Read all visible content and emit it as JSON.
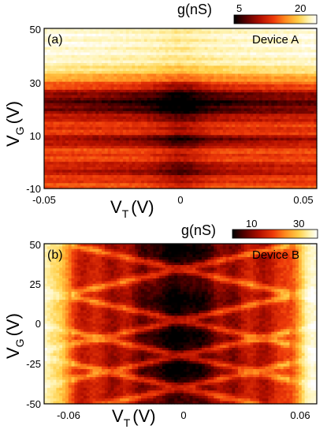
{
  "colors": {
    "colormap": [
      "#000000",
      "#5a0000",
      "#b41000",
      "#ee3a0a",
      "#ff8a1e",
      "#ffcf48",
      "#fff3b0",
      "#ffffff"
    ]
  },
  "chart_data": [
    {
      "type": "heatmap",
      "panel_label": "(a)",
      "device_label": "Device A",
      "xlabel": "V",
      "xlabel_sub": "T",
      "xlabel_unit": "(V)",
      "ylabel": "V",
      "ylabel_sub": "G",
      "ylabel_unit": "(V)",
      "x_ticks": [
        "-0.05",
        "0",
        "0.05"
      ],
      "y_ticks": [
        "50",
        "30",
        "10",
        "-10"
      ],
      "xlim": [
        -0.05,
        0.05
      ],
      "ylim": [
        -10,
        50
      ],
      "colorbar": {
        "label": "g(nS)",
        "ticks": [
          "5",
          "20"
        ],
        "range": [
          5,
          20
        ]
      },
      "features": {
        "dark_bands_vg": [
          22,
          8,
          -3
        ],
        "bright_region_vg": [
          36,
          50
        ],
        "dark_center_vt": 0
      }
    },
    {
      "type": "heatmap",
      "panel_label": "(b)",
      "device_label": "Device B",
      "xlabel": "V",
      "xlabel_sub": "T",
      "xlabel_unit": "(V)",
      "ylabel": "V",
      "ylabel_sub": "G",
      "ylabel_unit": "(V)",
      "x_ticks": [
        "-0.06",
        "0",
        "0.06"
      ],
      "y_ticks": [
        "50",
        "25",
        "0",
        "-25",
        "-50"
      ],
      "xlim": [
        -0.072,
        0.072
      ],
      "ylim": [
        -50,
        50
      ],
      "colorbar": {
        "label": "g(nS)",
        "ticks": [
          "10",
          "30"
        ],
        "range": [
          10,
          30
        ]
      },
      "features": {
        "diamond_crossings_vg": [
          34,
          2,
          -20,
          -40
        ],
        "bright_edges_vt": [
          -0.062,
          0.062
        ]
      }
    }
  ]
}
